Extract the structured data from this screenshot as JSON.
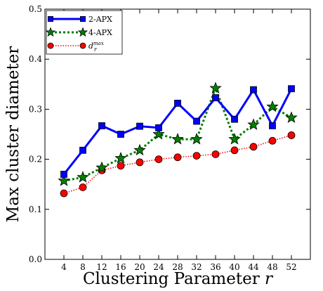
{
  "chart_data": {
    "type": "line",
    "xlabel": "Clustering Parameter r",
    "ylabel": "Max cluster diameter",
    "x": [
      4,
      8,
      12,
      16,
      20,
      24,
      28,
      32,
      36,
      40,
      44,
      48,
      52
    ],
    "xlim": [
      0,
      56
    ],
    "ylim": [
      0.0,
      0.5
    ],
    "yticks": [
      "0.0",
      "0.1",
      "0.2",
      "0.3",
      "0.4",
      "0.5"
    ],
    "legend_position": "top-left",
    "grid": false,
    "series": [
      {
        "name": "2-APX",
        "color": "#0000ff",
        "line": "solid",
        "marker": "square",
        "values": [
          0.17,
          0.218,
          0.267,
          0.25,
          0.266,
          0.263,
          0.312,
          0.276,
          0.323,
          0.28,
          0.339,
          0.267,
          0.341
        ]
      },
      {
        "name": "4-APX",
        "color": "#008000",
        "line": "dotted",
        "marker": "star",
        "values": [
          0.157,
          0.164,
          0.183,
          0.202,
          0.218,
          0.25,
          0.24,
          0.24,
          0.342,
          0.24,
          0.269,
          0.305,
          0.283
        ]
      },
      {
        "name": "d_r^max",
        "color": "#ff0000",
        "line": "dotted",
        "marker": "circle",
        "values": [
          0.132,
          0.144,
          0.178,
          0.187,
          0.194,
          0.2,
          0.204,
          0.207,
          0.21,
          0.218,
          0.225,
          0.237,
          0.248
        ]
      }
    ]
  }
}
